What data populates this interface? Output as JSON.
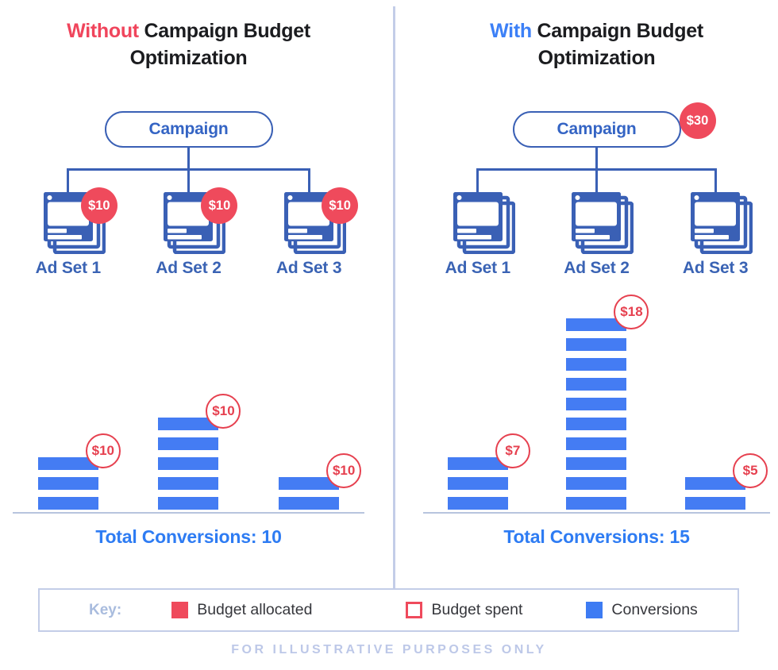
{
  "colors": {
    "red_fill": "#EF4A5C",
    "red_outline": "#E6404F",
    "title_red": "#F0455C",
    "title_blue": "#3C80F7",
    "indigo": "#3A60B5",
    "bar_blue": "#447CF3",
    "total_blue": "#2E7CF3",
    "divider": "#C3CDE8",
    "footer": "#BDC8E8"
  },
  "panels": [
    {
      "title_highlight": "Without",
      "highlight_color": "#F0455C",
      "title_rest": "Campaign Budget Optimization",
      "campaign_label": "Campaign",
      "campaign_badge": "",
      "ad_sets": [
        {
          "label": "Ad Set 1",
          "badge": "$10"
        },
        {
          "label": "Ad Set 2",
          "badge": "$10"
        },
        {
          "label": "Ad Set 3",
          "badge": "$10"
        }
      ],
      "total_text": "Total Conversions: 10"
    },
    {
      "title_highlight": "With",
      "highlight_color": "#3C80F7",
      "title_rest": "Campaign Budget Optimization",
      "campaign_label": "Campaign",
      "campaign_badge": "$30",
      "ad_sets": [
        {
          "label": "Ad Set 1",
          "badge": ""
        },
        {
          "label": "Ad Set 2",
          "badge": ""
        },
        {
          "label": "Ad Set 3",
          "badge": ""
        }
      ],
      "total_text": "Total Conversions: 15"
    }
  ],
  "chart_data": [
    {
      "type": "bar",
      "title": "Without Campaign Budget Optimization",
      "categories": [
        "Ad Set 1",
        "Ad Set 2",
        "Ad Set 3"
      ],
      "series": [
        {
          "name": "Conversions",
          "values": [
            3,
            5,
            2
          ]
        },
        {
          "name": "Budget spent",
          "values": [
            "$10",
            "$10",
            "$10"
          ]
        }
      ],
      "budget_allocated_per_ad_set": [
        "$10",
        "$10",
        "$10"
      ],
      "total_conversions": 10,
      "note": "each blue stripe segment = 1 conversion"
    },
    {
      "type": "bar",
      "title": "With Campaign Budget Optimization",
      "categories": [
        "Ad Set 1",
        "Ad Set 2",
        "Ad Set 3"
      ],
      "series": [
        {
          "name": "Conversions",
          "values": [
            3,
            10,
            2
          ]
        },
        {
          "name": "Budget spent",
          "values": [
            "$7",
            "$18",
            "$5"
          ]
        }
      ],
      "campaign_budget_allocated": "$30",
      "total_conversions": 15,
      "note": "each blue stripe segment = 1 conversion"
    }
  ],
  "legend": {
    "key_label": "Key:",
    "items": [
      {
        "label": "Budget allocated",
        "swatch": "fill-red"
      },
      {
        "label": "Budget spent",
        "swatch": "outline-red"
      },
      {
        "label": "Conversions",
        "swatch": "fill-blue"
      }
    ]
  },
  "footer": "FOR ILLUSTRATIVE PURPOSES ONLY"
}
